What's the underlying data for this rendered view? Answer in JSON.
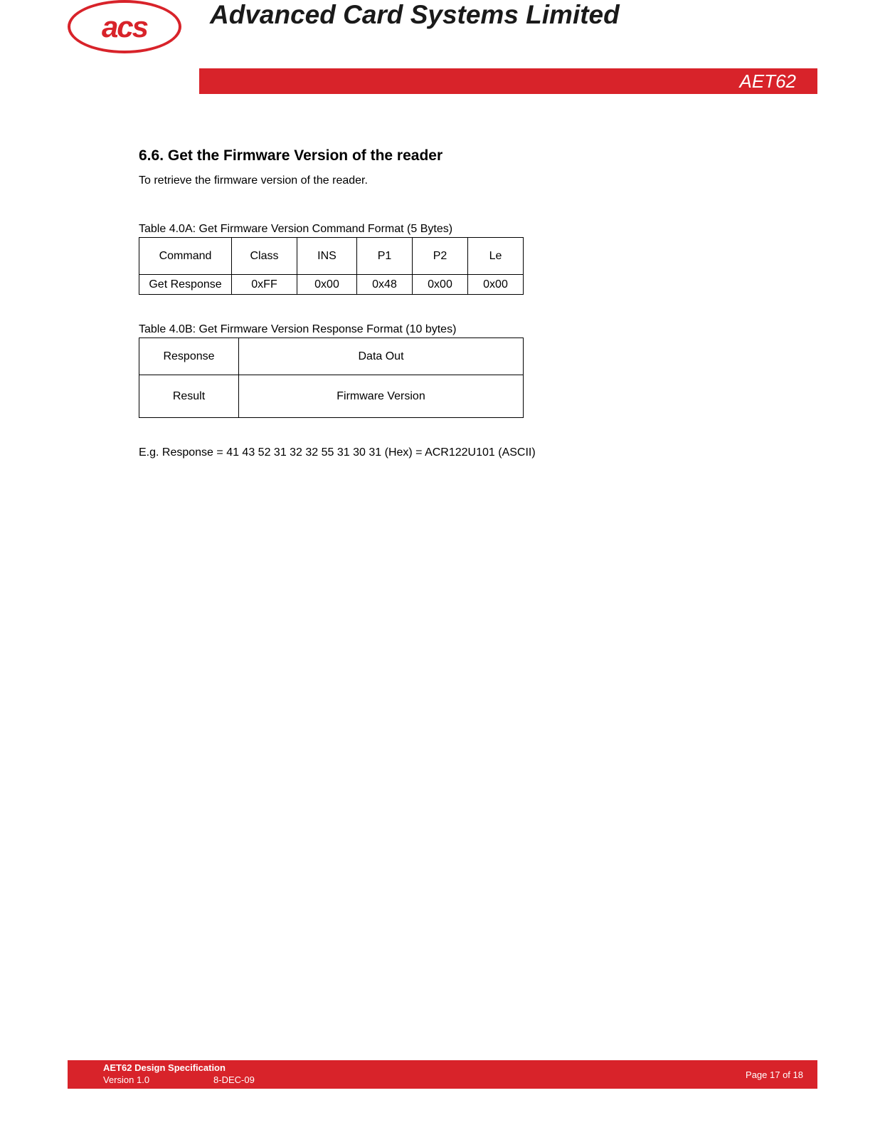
{
  "header": {
    "logo_text": "acs",
    "company_title": "Advanced Card Systems Limited",
    "product_label": "AET62"
  },
  "colors": {
    "brand_red": "#d8232a",
    "text_black": "#1a1a1a",
    "background": "#ffffff",
    "footer_text": "#ffffff"
  },
  "section": {
    "heading": "6.6. Get the Firmware Version of the reader",
    "intro": "To retrieve the firmware version of the reader."
  },
  "table_a": {
    "caption": "Table 4.0A: Get Firmware Version Command Format (5 Bytes)",
    "headers": [
      "Command",
      "Class",
      "INS",
      "P1",
      "P2",
      "Le"
    ],
    "row": [
      "Get Response",
      "0xFF",
      "0x00",
      "0x48",
      "0x00",
      "0x00"
    ]
  },
  "table_b": {
    "caption": "Table 4.0B: Get Firmware Version Response Format (10 bytes)",
    "headers": [
      "Response",
      "Data Out"
    ],
    "row": [
      "Result",
      "Firmware Version"
    ]
  },
  "example": "E.g. Response = 41 43 52 31 32 32 55 31 30 31 (Hex) = ACR122U101 (ASCII)",
  "footer": {
    "doc_title": "AET62 Design Specification",
    "version": "Version 1.0",
    "date": "8-DEC-09",
    "page": "Page 17 of 18"
  }
}
